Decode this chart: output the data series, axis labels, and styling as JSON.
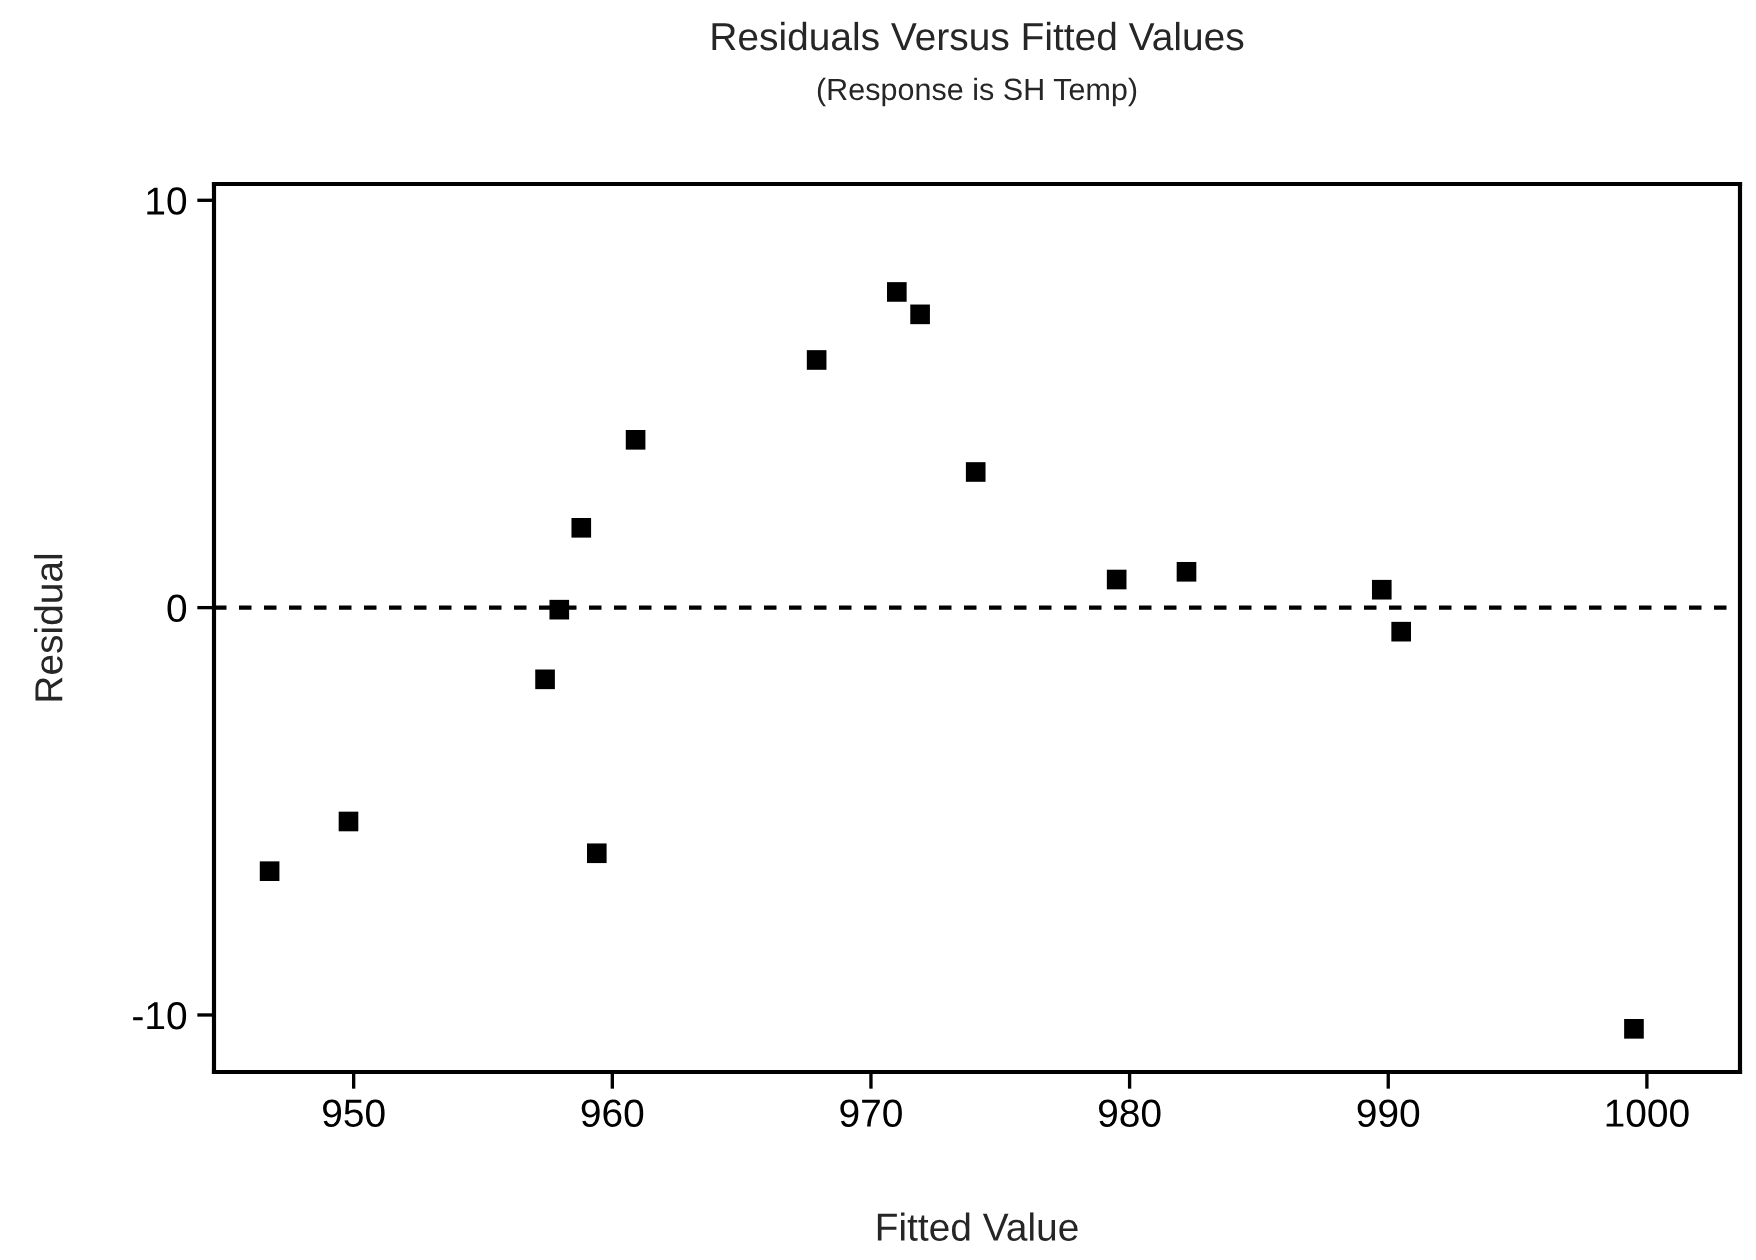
{
  "chart_data": {
    "type": "scatter",
    "title": "Residuals Versus Fitted Values",
    "subtitle": "(Response is SH Temp)",
    "xlabel": "Fitted Value",
    "ylabel": "Residual",
    "x": [
      946.75,
      949.8,
      957.4,
      957.95,
      958.8,
      959.4,
      960.9,
      967.9,
      971.0,
      971.9,
      974.05,
      979.5,
      982.2,
      989.75,
      990.5,
      999.5
    ],
    "series": [
      {
        "color": "#000000",
        "values": [
          -6.47,
          -5.25,
          -1.76,
          -0.05,
          1.96,
          -6.03,
          4.12,
          6.08,
          7.75,
          7.2,
          3.33,
          0.69,
          0.88,
          0.44,
          -0.59,
          -10.34
        ]
      }
    ],
    "xlim": [
      944.6,
      1003.6
    ],
    "ylim": [
      -11.4,
      10.4
    ],
    "xticks": [
      950,
      960,
      970,
      980,
      990,
      1000
    ],
    "yticks": [
      -10,
      0,
      10
    ],
    "ref_lines": [
      {
        "axis": "y",
        "value": 0,
        "color": "#000000",
        "line_style": "dashed"
      }
    ],
    "marker": "square",
    "grid": false,
    "legend": false
  }
}
